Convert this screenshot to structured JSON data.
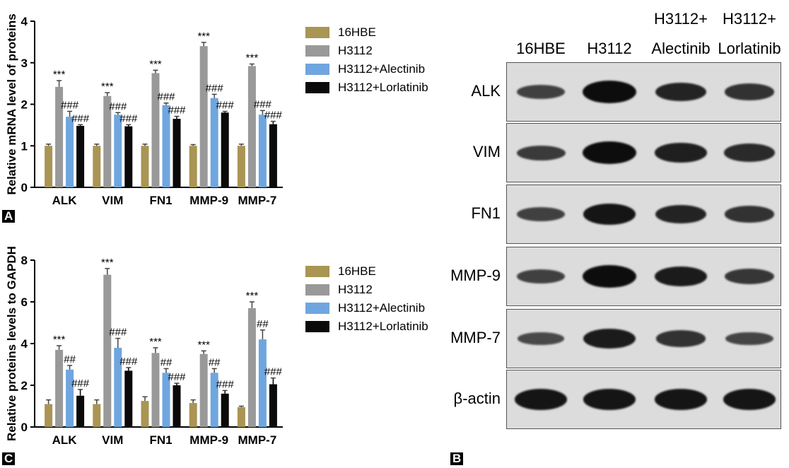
{
  "panels": {
    "A": "A",
    "B": "B",
    "C": "C"
  },
  "legend_entries": [
    "16HBE",
    "H3112",
    "H3112+Alectinib",
    "H3112+Lorlatinib"
  ],
  "colors": {
    "16HBE": "#a99554",
    "H3112": "#999999",
    "H3112+Alectinib": "#6fa6df",
    "H3112+Lorlatinib": "#0a0a0a"
  },
  "chart_data": [
    {
      "type": "bar",
      "panel": "A",
      "ylabel": "Relative mRNA level of proteins",
      "ylim": [
        0,
        4
      ],
      "yticks": [
        0,
        1,
        2,
        3,
        4
      ],
      "categories": [
        "ALK",
        "VIM",
        "FN1",
        "MMP-9",
        "MMP-7"
      ],
      "series": [
        {
          "name": "16HBE",
          "values": [
            1.0,
            1.0,
            1.0,
            1.0,
            1.0
          ],
          "errors": [
            0.04,
            0.04,
            0.04,
            0.03,
            0.04
          ],
          "labels": [
            "",
            "",
            "",
            "",
            ""
          ]
        },
        {
          "name": "H3112",
          "values": [
            2.42,
            2.2,
            2.75,
            3.4,
            2.92
          ],
          "errors": [
            0.15,
            0.08,
            0.07,
            0.09,
            0.05
          ],
          "labels": [
            "***",
            "***",
            "***",
            "***",
            "***"
          ]
        },
        {
          "name": "H3112+Alectinib",
          "values": [
            1.7,
            1.75,
            1.98,
            2.15,
            1.75
          ],
          "errors": [
            0.13,
            0.05,
            0.05,
            0.09,
            0.1
          ],
          "labels": [
            "###",
            "###",
            "###",
            "###",
            "###"
          ]
        },
        {
          "name": "H3112+Lorlatinib",
          "values": [
            1.48,
            1.47,
            1.65,
            1.8,
            1.52
          ],
          "errors": [
            0.03,
            0.04,
            0.06,
            0.03,
            0.07
          ],
          "labels": [
            "###",
            "###",
            "###",
            "###",
            "###"
          ]
        }
      ]
    },
    {
      "type": "bar",
      "panel": "C",
      "ylabel": "Relative  proteins levels to GAPDH",
      "ylim": [
        0,
        8
      ],
      "yticks": [
        0,
        2,
        4,
        6,
        8
      ],
      "categories": [
        "ALK",
        "VIM",
        "FN1",
        "MMP-9",
        "MMP-7"
      ],
      "series": [
        {
          "name": "16HBE",
          "values": [
            1.1,
            1.1,
            1.25,
            1.15,
            0.95
          ],
          "errors": [
            0.2,
            0.2,
            0.2,
            0.15,
            0.05
          ],
          "labels": [
            "",
            "",
            "",
            "",
            ""
          ]
        },
        {
          "name": "H3112",
          "values": [
            3.7,
            7.3,
            3.55,
            3.5,
            5.7
          ],
          "errors": [
            0.2,
            0.3,
            0.25,
            0.15,
            0.3
          ],
          "labels": [
            "***",
            "***",
            "***",
            "***",
            "***"
          ]
        },
        {
          "name": "H3112+Alectinib",
          "values": [
            2.75,
            3.8,
            2.6,
            2.6,
            4.2
          ],
          "errors": [
            0.2,
            0.45,
            0.2,
            0.2,
            0.45
          ],
          "labels": [
            "##",
            "###",
            "##",
            "##",
            "##"
          ]
        },
        {
          "name": "H3112+Lorlatinib",
          "values": [
            1.5,
            2.7,
            2.0,
            1.6,
            2.05
          ],
          "errors": [
            0.3,
            0.15,
            0.1,
            0.15,
            0.3
          ],
          "labels": [
            "###",
            "###",
            "###",
            "###",
            "###"
          ]
        }
      ]
    }
  ],
  "blot": {
    "columns": [
      {
        "line1": "",
        "line2": "16HBE"
      },
      {
        "line1": "",
        "line2": "H3112"
      },
      {
        "line1": "H3112+",
        "line2": "Alectinib"
      },
      {
        "line1": "H3112+",
        "line2": "Lorlatinib"
      }
    ],
    "rows": [
      {
        "label": "ALK",
        "intensity": [
          0.45,
          1.0,
          0.75,
          0.6
        ]
      },
      {
        "label": "VIM",
        "intensity": [
          0.5,
          1.0,
          0.8,
          0.7
        ]
      },
      {
        "label": "FN1",
        "intensity": [
          0.45,
          0.9,
          0.75,
          0.6
        ]
      },
      {
        "label": "MMP-9",
        "intensity": [
          0.45,
          1.0,
          0.85,
          0.55
        ]
      },
      {
        "label": "MMP-7",
        "intensity": [
          0.35,
          0.85,
          0.6,
          0.4
        ]
      },
      {
        "label": "β-actin",
        "intensity": [
          0.9,
          0.9,
          0.9,
          0.9
        ]
      }
    ]
  }
}
